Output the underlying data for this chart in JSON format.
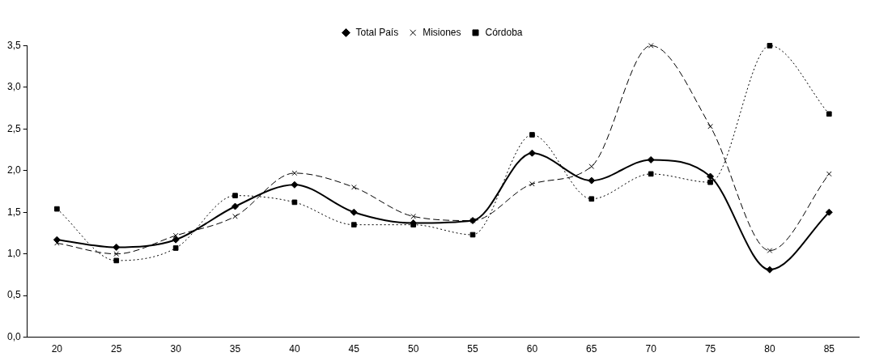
{
  "chart_data": {
    "type": "line",
    "categories": [
      "20",
      "25",
      "30",
      "35",
      "40",
      "45",
      "50",
      "55",
      "60",
      "65",
      "70",
      "75",
      "80",
      "85"
    ],
    "series": [
      {
        "name": "Total País",
        "color": "#000000",
        "marker": "diamond",
        "line_style": "solid",
        "values": [
          1.17,
          1.08,
          1.17,
          1.57,
          1.83,
          1.5,
          1.37,
          1.4,
          2.21,
          1.88,
          2.13,
          1.93,
          0.81,
          1.5
        ]
      },
      {
        "name": "Misiones",
        "color": "#000000",
        "marker": "cross",
        "line_style": "dashed",
        "values": [
          1.13,
          1.0,
          1.22,
          1.45,
          1.97,
          1.8,
          1.45,
          1.4,
          1.84,
          2.05,
          3.5,
          2.53,
          1.04,
          1.96
        ]
      },
      {
        "name": "Córdoba",
        "color": "#000000",
        "marker": "square",
        "line_style": "dotted",
        "values": [
          1.54,
          0.92,
          1.07,
          1.7,
          1.62,
          1.35,
          1.35,
          1.23,
          2.43,
          1.66,
          1.96,
          1.86,
          3.5,
          2.68
        ]
      }
    ],
    "ylim": [
      0,
      3.5
    ],
    "yticks": [
      {
        "value": 0,
        "label": "0,0"
      },
      {
        "value": 0.5,
        "label": "0,5"
      },
      {
        "value": 1,
        "label": "1,0"
      },
      {
        "value": 1.5,
        "label": "1,5"
      },
      {
        "value": 2,
        "label": "2,0"
      },
      {
        "value": 2.5,
        "label": "2,5"
      },
      {
        "value": 3,
        "label": "3,0"
      },
      {
        "value": 3.5,
        "label": "3,5"
      }
    ],
    "grid": false,
    "legend": "top"
  }
}
